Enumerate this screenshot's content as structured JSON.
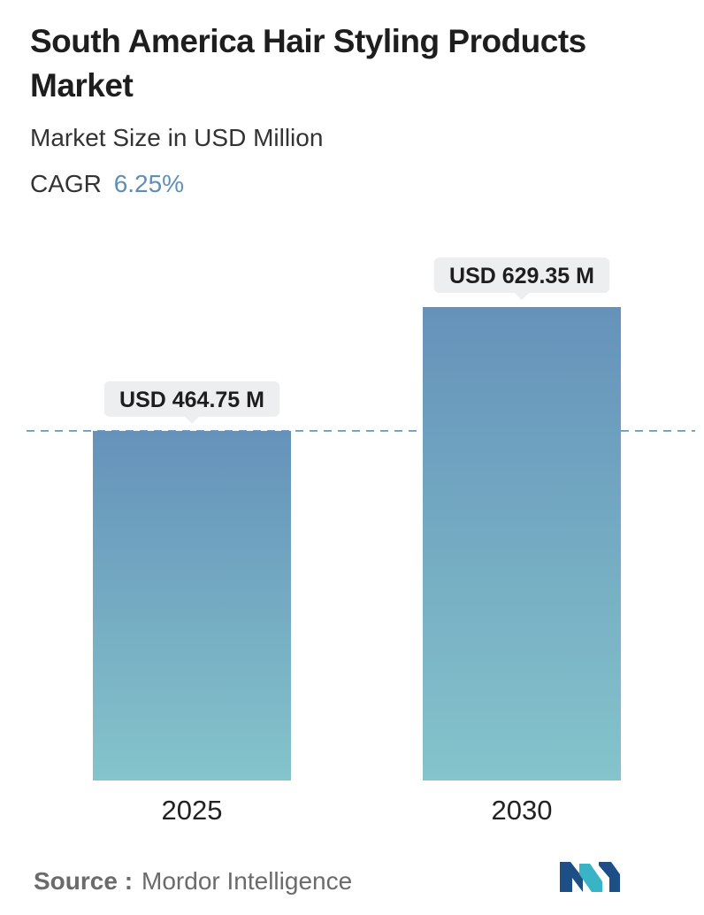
{
  "header": {
    "title": "South America Hair Styling Products Market",
    "subtitle": "Market Size in USD Million",
    "cagr_label": "CAGR",
    "cagr_value": "6.25%"
  },
  "footer": {
    "source_label": "Source :",
    "source_name": "Mordor Intelligence"
  },
  "colors": {
    "bar_top": "#6592ba",
    "bar_bottom": "#84c4cb",
    "label_bg": "#eceeef",
    "dash": "#5f8fb6",
    "cagr": "#5f8fb6",
    "logo_dark": "#1d4e86",
    "logo_light": "#39b3c6"
  },
  "chart_data": {
    "type": "bar",
    "categories": [
      "2025",
      "2030"
    ],
    "values": [
      464.75,
      629.35
    ],
    "value_labels": [
      "USD 464.75 M",
      "USD 629.35 M"
    ],
    "title": "South America Hair Styling Products Market",
    "subtitle": "Market Size in USD Million",
    "xlabel": "",
    "ylabel": "",
    "grid": false,
    "reference_line": 464.75,
    "legend": "none"
  }
}
